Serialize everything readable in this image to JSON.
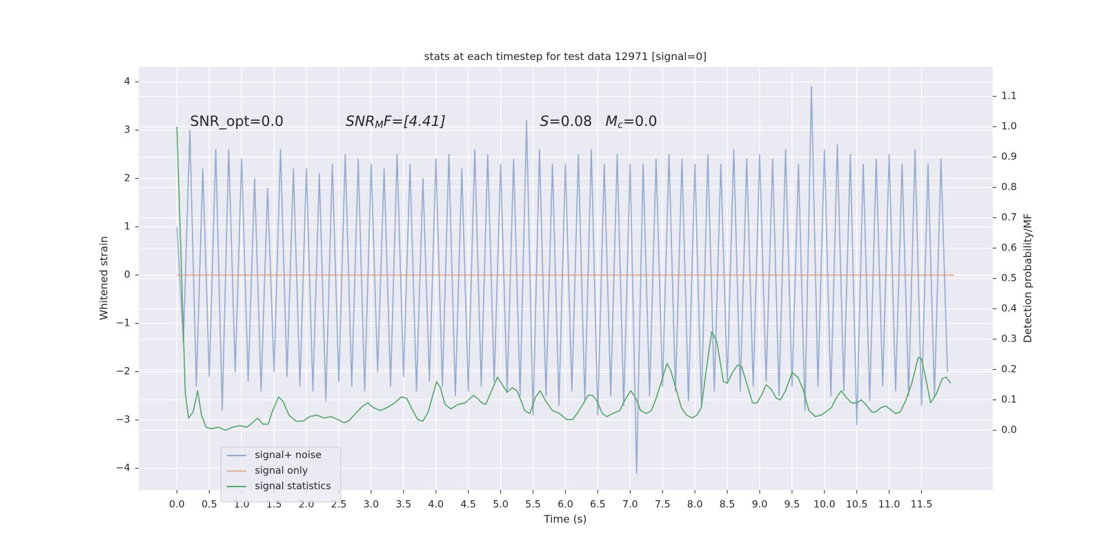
{
  "chart_data": {
    "type": "line",
    "title": "stats at each timestep for test data 12971 [signal=0]",
    "xlabel": "Time (s)",
    "ylabel": "Whitened strain",
    "y2label": "Detection probability/MF",
    "annotations": [
      {
        "text": "SNR_opt=0.0"
      },
      {
        "parts": [
          "SNR",
          "M",
          "F=[4.41]"
        ]
      },
      {
        "parts": [
          "S",
          "=0.08   ",
          "M",
          "c",
          "=0.0"
        ]
      }
    ],
    "xlim": [
      -0.59,
      12.6
    ],
    "ylim": [
      -4.45,
      4.31
    ],
    "y2lim": [
      -0.197,
      1.197
    ],
    "xticks": [
      {
        "value": 0,
        "label": "0.0"
      },
      0.5,
      {
        "value": 1,
        "label": "1.0"
      },
      1.5,
      {
        "value": 2,
        "label": "2.0"
      },
      2.5,
      {
        "value": 3,
        "label": "3.0"
      },
      3.5,
      {
        "value": 4,
        "label": "4.0"
      },
      4.5,
      {
        "value": 5,
        "label": "5.0"
      },
      5.5,
      {
        "value": 6,
        "label": "6.0"
      },
      6.5,
      {
        "value": 7,
        "label": "7.0"
      },
      7.5,
      {
        "value": 8,
        "label": "8.0"
      },
      8.5,
      {
        "value": 9,
        "label": "9.0"
      },
      9.5,
      {
        "value": 10,
        "label": "10.0"
      },
      10.5,
      {
        "value": 11,
        "label": "11.0"
      },
      11.5
    ],
    "yticks": [
      {
        "value": -4,
        "label": "−4"
      },
      {
        "value": -3,
        "label": "−3"
      },
      {
        "value": -2,
        "label": "−2"
      },
      {
        "value": -1,
        "label": "−1"
      },
      0,
      1,
      2,
      3,
      4
    ],
    "y2ticks": [
      {
        "value": 0,
        "label": "0.0"
      },
      0.1,
      0.2,
      0.3,
      0.4,
      0.5,
      0.6,
      0.7,
      0.8,
      0.9,
      {
        "value": 1,
        "label": "1.0"
      },
      1.1
    ],
    "grid": true,
    "legend": "lower left",
    "series": [
      {
        "name": "signal+ noise",
        "color": "#4c72b0",
        "axis": "y",
        "x": [
          0,
          0.1,
          0.2,
          0.3,
          0.4,
          0.5,
          0.6,
          0.7,
          0.8,
          0.9,
          1,
          1.1,
          1.2,
          1.3,
          1.4,
          1.5,
          1.6,
          1.7,
          1.8,
          1.9,
          2,
          2.1,
          2.2,
          2.3,
          2.4,
          2.5,
          2.6,
          2.7,
          2.8,
          2.9,
          3,
          3.1,
          3.2,
          3.3,
          3.4,
          3.5,
          3.6,
          3.7,
          3.8,
          3.9,
          4,
          4.1,
          4.2,
          4.3,
          4.4,
          4.5,
          4.6,
          4.7,
          4.8,
          4.9,
          5,
          5.1,
          5.2,
          5.3,
          5.4,
          5.5,
          5.6,
          5.7,
          5.8,
          5.9,
          6,
          6.1,
          6.2,
          6.3,
          6.4,
          6.5,
          6.6,
          6.7,
          6.8,
          6.9,
          7,
          7.1,
          7.2,
          7.3,
          7.4,
          7.5,
          7.6,
          7.7,
          7.8,
          7.9,
          8,
          8.1,
          8.2,
          8.3,
          8.4,
          8.5,
          8.6,
          8.7,
          8.8,
          8.9,
          9,
          9.1,
          9.2,
          9.3,
          9.4,
          9.5,
          9.6,
          9.7,
          9.8,
          9.9,
          10,
          10.1,
          10.2,
          10.3,
          10.4,
          10.5,
          10.6,
          10.7,
          10.8,
          10.9,
          11,
          11.1,
          11.2,
          11.3,
          11.4,
          11.5,
          11.6,
          11.7,
          11.8,
          11.9
        ],
        "values": [
          1.0,
          -1.4,
          3.0,
          -2.3,
          2.2,
          -2.1,
          2.6,
          -2.8,
          2.6,
          -2.0,
          2.4,
          -2.2,
          2.0,
          -2.4,
          1.8,
          -2.0,
          2.6,
          -2.1,
          2.2,
          -2.3,
          2.2,
          -2.4,
          2.1,
          -2.6,
          2.3,
          -2.2,
          2.5,
          -2.3,
          2.4,
          -2.4,
          2.3,
          -2.0,
          2.2,
          -2.3,
          2.5,
          -2.1,
          2.3,
          -2.4,
          2.0,
          -2.2,
          2.4,
          -2.3,
          2.5,
          -2.5,
          2.2,
          -2.4,
          2.6,
          -2.3,
          2.5,
          -2.2,
          2.3,
          -2.4,
          2.4,
          -2.5,
          3.2,
          -2.9,
          2.6,
          -2.5,
          2.3,
          -2.7,
          2.3,
          -2.4,
          2.5,
          -2.6,
          2.6,
          -2.9,
          2.3,
          -2.5,
          2.5,
          -2.7,
          2.3,
          -4.1,
          2.3,
          -2.5,
          2.4,
          -2.3,
          2.5,
          -2.4,
          2.4,
          -2.6,
          2.3,
          -2.7,
          2.5,
          -2.4,
          2.3,
          -2.2,
          2.6,
          -2.4,
          2.4,
          -2.3,
          2.5,
          -2.2,
          2.4,
          -2.5,
          2.6,
          -2.3,
          2.3,
          -2.8,
          3.9,
          -2.3,
          2.6,
          -2.5,
          2.7,
          -2.4,
          2.5,
          -3.1,
          2.3,
          -2.6,
          2.4,
          -2.3,
          2.5,
          -2.4,
          2.3,
          -2.5,
          2.6,
          -2.7,
          2.3,
          -2.5,
          2.4,
          -2.0
        ]
      },
      {
        "name": "signal only",
        "color": "#dd8452",
        "axis": "y",
        "x": [
          0,
          12
        ],
        "values": [
          0,
          0
        ]
      },
      {
        "name": "signal statistics",
        "color": "#55a868",
        "axis": "y2",
        "x": [
          0,
          0.13,
          0.18,
          0.25,
          0.32,
          0.38,
          0.45,
          0.53,
          0.64,
          0.75,
          0.86,
          0.97,
          1.08,
          1.14,
          1.25,
          1.33,
          1.41,
          1.47,
          1.57,
          1.64,
          1.73,
          1.84,
          1.95,
          2.05,
          2.16,
          2.27,
          2.38,
          2.49,
          2.58,
          2.65,
          2.76,
          2.87,
          2.95,
          3.03,
          3.14,
          3.25,
          3.36,
          3.47,
          3.55,
          3.63,
          3.72,
          3.8,
          3.88,
          4.01,
          4.07,
          4.14,
          4.23,
          4.34,
          4.45,
          4.58,
          4.64,
          4.71,
          4.77,
          4.85,
          4.95,
          5.01,
          5.1,
          5.18,
          5.25,
          5.32,
          5.37,
          5.45,
          5.54,
          5.61,
          5.7,
          5.8,
          5.91,
          6.02,
          6.11,
          6.18,
          6.27,
          6.35,
          6.42,
          6.49,
          6.57,
          6.64,
          6.73,
          6.84,
          6.92,
          7.01,
          7.09,
          7.16,
          7.25,
          7.33,
          7.4,
          7.49,
          7.57,
          7.63,
          7.71,
          7.79,
          7.87,
          7.96,
          8.03,
          8.1,
          8.17,
          8.26,
          8.34,
          8.44,
          8.5,
          8.58,
          8.66,
          8.72,
          8.8,
          8.89,
          8.96,
          9.04,
          9.1,
          9.18,
          9.26,
          9.32,
          9.4,
          9.5,
          9.59,
          9.67,
          9.76,
          9.86,
          9.95,
          10.02,
          10.11,
          10.18,
          10.26,
          10.33,
          10.42,
          10.5,
          10.57,
          10.64,
          10.73,
          10.79,
          10.88,
          10.95,
          11.01,
          11.1,
          11.17,
          11.25,
          11.35,
          11.45,
          11.5,
          11.58,
          11.64,
          11.73,
          11.82,
          11.88,
          11.95
        ],
        "values": [
          1.0,
          0.12,
          0.04,
          0.06,
          0.13,
          0.05,
          0.01,
          0.005,
          0.01,
          0.0,
          0.01,
          0.015,
          0.01,
          0.02,
          0.04,
          0.02,
          0.02,
          0.06,
          0.11,
          0.095,
          0.05,
          0.03,
          0.03,
          0.045,
          0.05,
          0.04,
          0.045,
          0.035,
          0.025,
          0.03,
          0.055,
          0.08,
          0.09,
          0.075,
          0.065,
          0.075,
          0.09,
          0.11,
          0.105,
          0.07,
          0.035,
          0.03,
          0.06,
          0.16,
          0.14,
          0.085,
          0.07,
          0.085,
          0.09,
          0.115,
          0.105,
          0.09,
          0.085,
          0.125,
          0.175,
          0.155,
          0.125,
          0.14,
          0.13,
          0.095,
          0.065,
          0.055,
          0.11,
          0.13,
          0.095,
          0.065,
          0.055,
          0.035,
          0.035,
          0.055,
          0.085,
          0.115,
          0.115,
          0.095,
          0.055,
          0.045,
          0.055,
          0.065,
          0.1,
          0.13,
          0.105,
          0.065,
          0.055,
          0.065,
          0.105,
          0.165,
          0.22,
          0.195,
          0.135,
          0.075,
          0.05,
          0.04,
          0.05,
          0.075,
          0.19,
          0.325,
          0.29,
          0.16,
          0.155,
          0.19,
          0.215,
          0.21,
          0.155,
          0.09,
          0.09,
          0.12,
          0.15,
          0.135,
          0.105,
          0.1,
          0.13,
          0.19,
          0.175,
          0.135,
          0.065,
          0.045,
          0.05,
          0.06,
          0.075,
          0.105,
          0.13,
          0.11,
          0.09,
          0.09,
          0.1,
          0.085,
          0.06,
          0.06,
          0.075,
          0.08,
          0.07,
          0.055,
          0.06,
          0.095,
          0.155,
          0.24,
          0.235,
          0.155,
          0.09,
          0.12,
          0.17,
          0.175,
          0.155
        ]
      }
    ]
  }
}
